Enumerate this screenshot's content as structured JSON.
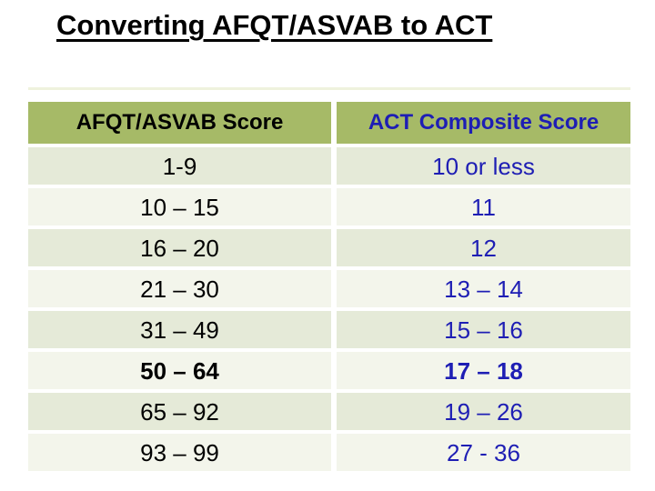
{
  "slide_title": "Converting AFQT/ASVAB to ACT",
  "table": {
    "column_headers": {
      "afqt": "AFQT/ASVAB Score",
      "act": "ACT Composite Score"
    },
    "rows": [
      {
        "afqt": "1-9",
        "act": "10 or less",
        "weight": "normal"
      },
      {
        "afqt": "10 – 15",
        "act": "11",
        "weight": "normal"
      },
      {
        "afqt": "16 – 20",
        "act": "12",
        "weight": "normal"
      },
      {
        "afqt": "21 – 30",
        "act": "13 – 14",
        "weight": "normal"
      },
      {
        "afqt": "31 – 49",
        "act": "15 – 16",
        "weight": "normal"
      },
      {
        "afqt": "50 – 64",
        "act": "17 – 18",
        "weight": "bold"
      },
      {
        "afqt": "65 – 92",
        "act": "19 – 26",
        "weight": "normal"
      },
      {
        "afqt": "93 – 99",
        "act": "27 - 36",
        "weight": "normal"
      }
    ]
  },
  "colors": {
    "header_background": "#a6ba67",
    "row_dark": "#e5ead8",
    "row_light": "#f3f5eb",
    "act_text_blue": "#1e1eb4",
    "afqt_text_black": "#000000",
    "title_text": "#000000",
    "slide_background": "#ffffff"
  }
}
